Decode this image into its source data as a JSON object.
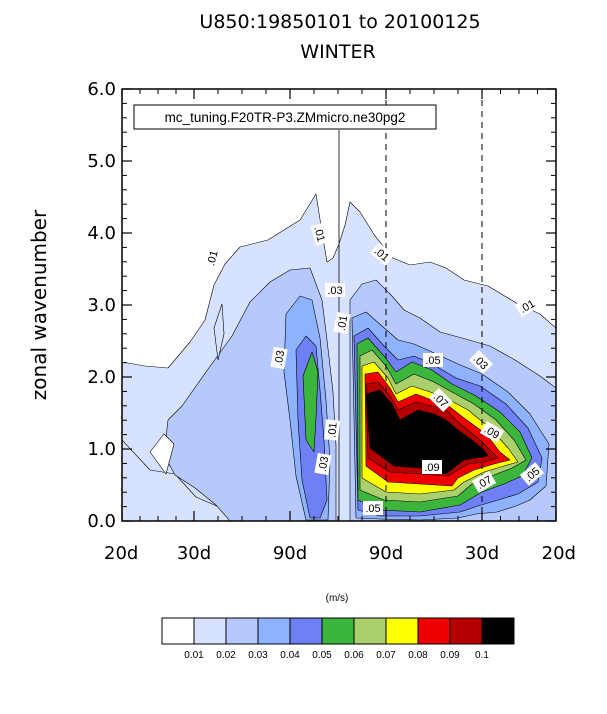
{
  "chart_data": {
    "type": "heatmap",
    "title_line1": "U850:19850101 to 20100125",
    "title_line2": "WINTER",
    "ylabel": "zonal wavenumber",
    "legend_box": "mc_tuning.F20TR-P3.ZMmicro.ne30pg2",
    "units": "(m/s)",
    "ylim": [
      0,
      6
    ],
    "yticks": [
      "0.0",
      "1.0",
      "2.0",
      "3.0",
      "4.0",
      "5.0",
      "6.0"
    ],
    "xticks": [
      "20d",
      "30d",
      "90d",
      "90d",
      "30d",
      "20d"
    ],
    "levels": [
      0.01,
      0.02,
      0.03,
      0.04,
      0.05,
      0.06,
      0.07,
      0.08,
      0.09,
      0.1
    ],
    "level_labels": [
      "0.01",
      "0.02",
      "0.03",
      "0.04",
      "0.05",
      "0.06",
      "0.07",
      "0.08",
      "0.09",
      "0.1"
    ],
    "colors": [
      "#ffffff",
      "#d6e2ff",
      "#b5c9ff",
      "#8eb2ff",
      "#6f80f5",
      "#3cb53c",
      "#aacf6d",
      "#ffff00",
      "#ee0000",
      "#b40000",
      "#000000"
    ],
    "contour_labels": [
      ".01",
      ".01",
      ".01",
      ".01",
      ".03",
      ".01",
      ".03",
      ".05",
      ".03",
      ".07",
      ".09",
      ".09",
      ".07",
      ".05",
      ".03",
      ".01",
      ".05"
    ]
  }
}
